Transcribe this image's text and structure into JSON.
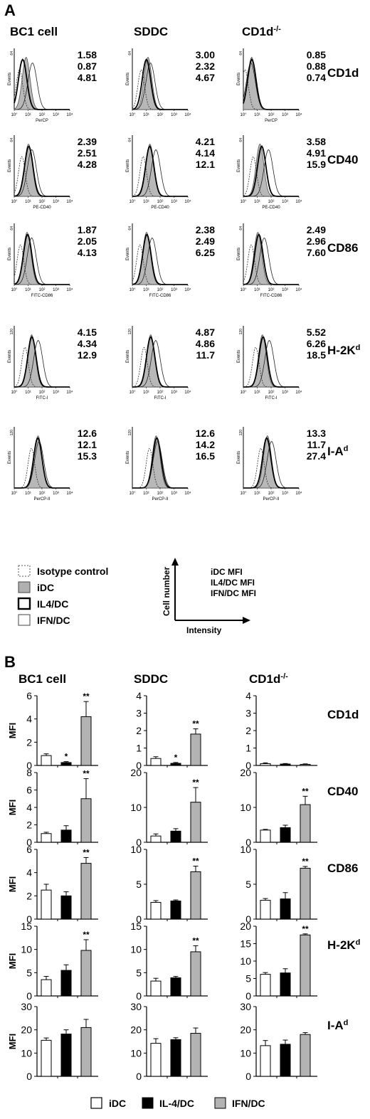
{
  "panelA": {
    "label": "A",
    "columns": [
      "BC1 cell",
      "SDDC",
      "CD1d-/-"
    ],
    "markers": [
      "CD1d",
      "CD40",
      "CD86",
      "H-2Kd",
      "I-Ad"
    ],
    "y_axis_label": "Events",
    "y_max": [
      [
        "64",
        "64",
        "64"
      ],
      [
        "64",
        "64",
        "64"
      ],
      [
        "64",
        "64",
        "64"
      ],
      [
        "120",
        "120",
        "120"
      ],
      [
        "120",
        "120",
        "120"
      ]
    ],
    "x_ticks": [
      "10°",
      "10¹",
      "10²",
      "10³",
      "10⁴"
    ],
    "x_labels": [
      [
        "PerCP",
        "",
        "PerCP"
      ],
      [
        "PE-CD40",
        "PE-CD40",
        "PE-CD40"
      ],
      [
        "FITC-CD86",
        "FITC-CD86",
        "FITC-CD86"
      ],
      [
        "FITC-I",
        "FITC-I",
        "FITC-I"
      ],
      [
        "PerCP-II",
        "PerCP-II",
        "PerCP-II"
      ]
    ],
    "mfi": [
      [
        [
          "1.58",
          "0.87",
          "4.81"
        ],
        [
          "3.00",
          "2.32",
          "4.67"
        ],
        [
          "0.85",
          "0.88",
          "0.74"
        ]
      ],
      [
        [
          "2.39",
          "2.51",
          "4.28"
        ],
        [
          "4.21",
          "4.14",
          "12.1"
        ],
        [
          "3.58",
          "4.91",
          "15.9"
        ]
      ],
      [
        [
          "1.87",
          "2.05",
          "4.13"
        ],
        [
          "2.38",
          "2.49",
          "6.25"
        ],
        [
          "2.49",
          "2.96",
          "7.60"
        ]
      ],
      [
        [
          "4.15",
          "4.34",
          "12.9"
        ],
        [
          "4.87",
          "4.86",
          "11.7"
        ],
        [
          "5.52",
          "6.26",
          "18.5"
        ]
      ],
      [
        [
          "12.6",
          "12.1",
          "15.3"
        ],
        [
          "12.6",
          "14.2",
          "16.5"
        ],
        [
          "13.3",
          "11.7",
          "27.4"
        ]
      ]
    ],
    "legend": [
      "Isotype control",
      "iDC",
      "IL4/DC",
      "IFN/DC"
    ],
    "key": {
      "lines": [
        "iDC MFI",
        "IL4/DC MFI",
        "IFN/DC MFI"
      ],
      "y_label": "Cell number",
      "x_label": "Intensity"
    }
  },
  "chart_data": {
    "type": "bar",
    "panel_label": "B",
    "ylabel": "MFI",
    "categories": [
      "iDC",
      "IL-4/DC",
      "IFN/DC"
    ],
    "columns": [
      "BC1 cell",
      "SDDC",
      "CD1d-/-"
    ],
    "rows": [
      "CD1d",
      "CD40",
      "CD86",
      "H-2Kd",
      "I-Ad"
    ],
    "legend": [
      "iDC",
      "IL-4/DC",
      "IFN/DC"
    ],
    "colors": {
      "iDC": "#ffffff",
      "IL-4/DC": "#000000",
      "IFN/DC": "#b3b3b3"
    },
    "charts": [
      [
        {
          "yticks": [
            0,
            2,
            4,
            6
          ],
          "values": [
            0.85,
            0.25,
            4.2
          ],
          "errors": [
            0.15,
            0.08,
            1.3
          ],
          "sig": [
            "",
            "*",
            "**"
          ]
        },
        {
          "yticks": [
            0,
            1,
            2,
            3,
            4
          ],
          "values": [
            0.4,
            0.12,
            1.8
          ],
          "errors": [
            0.1,
            0.05,
            0.3
          ],
          "sig": [
            "",
            "*",
            "**"
          ]
        },
        {
          "yticks": [
            0,
            1,
            2,
            3,
            4
          ],
          "values": [
            0.1,
            0.08,
            0.06
          ],
          "errors": [
            0.05,
            0.03,
            0.03
          ],
          "sig": [
            "",
            "",
            ""
          ]
        }
      ],
      [
        {
          "yticks": [
            0,
            2,
            4,
            6,
            8
          ],
          "values": [
            1.0,
            1.4,
            5.0
          ],
          "errors": [
            0.15,
            0.5,
            2.3
          ],
          "sig": [
            "",
            "",
            "**"
          ]
        },
        {
          "yticks": [
            0,
            10,
            20
          ],
          "values": [
            1.8,
            3.2,
            11.5
          ],
          "errors": [
            0.6,
            0.7,
            4.2
          ],
          "sig": [
            "",
            "",
            "**"
          ]
        },
        {
          "yticks": [
            0,
            10,
            20
          ],
          "values": [
            3.5,
            4.2,
            10.8
          ],
          "errors": [
            0.2,
            0.7,
            2.4
          ],
          "sig": [
            "",
            "",
            "**"
          ]
        }
      ],
      [
        {
          "yticks": [
            0,
            2,
            4,
            6
          ],
          "values": [
            2.5,
            2.0,
            4.8
          ],
          "errors": [
            0.5,
            0.35,
            0.5
          ],
          "sig": [
            "",
            "",
            "**"
          ]
        },
        {
          "yticks": [
            0,
            5,
            10
          ],
          "values": [
            2.4,
            2.6,
            6.8
          ],
          "errors": [
            0.25,
            0.15,
            0.8
          ],
          "sig": [
            "",
            "",
            "**"
          ]
        },
        {
          "yticks": [
            0,
            5,
            10
          ],
          "values": [
            2.7,
            2.9,
            7.3
          ],
          "errors": [
            0.25,
            0.9,
            0.25
          ],
          "sig": [
            "",
            "",
            "**"
          ]
        }
      ],
      [
        {
          "yticks": [
            0,
            5,
            10,
            15
          ],
          "values": [
            3.5,
            5.5,
            9.8
          ],
          "errors": [
            0.7,
            1.2,
            2.3
          ],
          "sig": [
            "",
            "",
            "**"
          ]
        },
        {
          "yticks": [
            0,
            5,
            10,
            15
          ],
          "values": [
            3.2,
            3.9,
            9.5
          ],
          "errors": [
            0.6,
            0.3,
            1.3
          ],
          "sig": [
            "",
            "",
            "**"
          ]
        },
        {
          "yticks": [
            0,
            5,
            10,
            15,
            20
          ],
          "values": [
            6.2,
            6.6,
            17.5
          ],
          "errors": [
            0.5,
            1.2,
            0.3
          ],
          "sig": [
            "",
            "",
            "**"
          ]
        }
      ],
      [
        {
          "yticks": [
            0,
            10,
            20,
            30
          ],
          "values": [
            15.5,
            18.2,
            21.0
          ],
          "errors": [
            1.0,
            1.8,
            3.5
          ],
          "sig": [
            "",
            "",
            ""
          ]
        },
        {
          "yticks": [
            0,
            10,
            20,
            30
          ],
          "values": [
            14.2,
            15.8,
            18.5
          ],
          "errors": [
            2.0,
            0.8,
            2.3
          ],
          "sig": [
            "",
            "",
            ""
          ]
        },
        {
          "yticks": [
            0,
            10,
            20,
            30
          ],
          "values": [
            13.2,
            13.8,
            18.0
          ],
          "errors": [
            2.2,
            1.8,
            0.8
          ],
          "sig": [
            "",
            "",
            ""
          ]
        }
      ]
    ]
  }
}
